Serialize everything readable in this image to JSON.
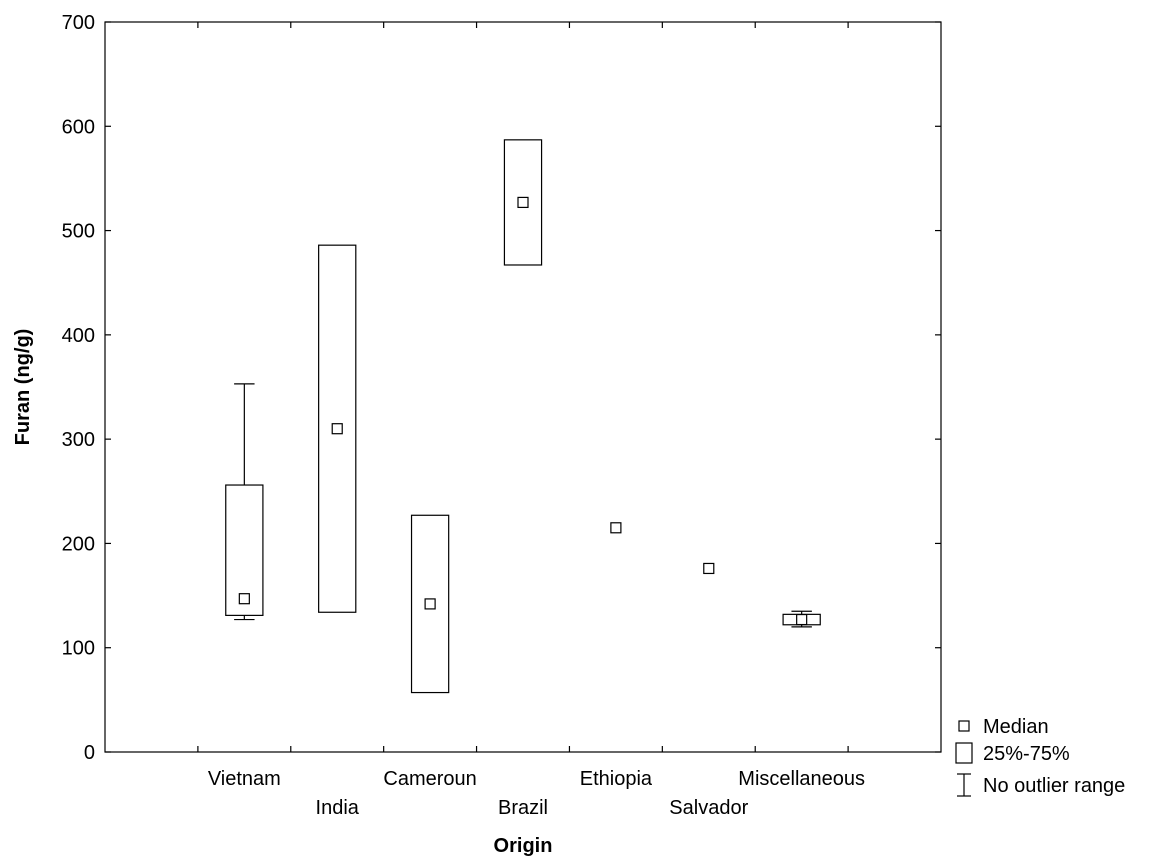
{
  "chart_data": {
    "type": "box",
    "xlabel": "Origin",
    "ylabel": "Furan (ng/g)",
    "ylim": [
      0,
      700
    ],
    "yticks": [
      0,
      100,
      200,
      300,
      400,
      500,
      600,
      700
    ],
    "categories": [
      "Vietnam",
      "India",
      "Cameroun",
      "Brazil",
      "Ethiopia",
      "Salvador",
      "Miscellaneous"
    ],
    "series": [
      {
        "category": "Vietnam",
        "median": 147,
        "q1": 131,
        "q3": 256,
        "min": 127,
        "max": 353
      },
      {
        "category": "India",
        "median": 310,
        "q1": 134,
        "q3": 486,
        "min": null,
        "max": null
      },
      {
        "category": "Cameroun",
        "median": 142,
        "q1": 57,
        "q3": 227,
        "min": null,
        "max": null
      },
      {
        "category": "Brazil",
        "median": 527,
        "q1": 467,
        "q3": 587,
        "min": null,
        "max": null
      },
      {
        "category": "Ethiopia",
        "median": 215,
        "q1": null,
        "q3": null,
        "min": null,
        "max": null
      },
      {
        "category": "Salvador",
        "median": 176,
        "q1": null,
        "q3": null,
        "min": null,
        "max": null
      },
      {
        "category": "Miscellaneous",
        "median": 127,
        "q1": 122,
        "q3": 132,
        "min": 120,
        "max": 135
      }
    ],
    "legend": {
      "position": "bottom-right-outside",
      "items": [
        "Median",
        "25%-75%",
        "No outlier range"
      ]
    }
  }
}
